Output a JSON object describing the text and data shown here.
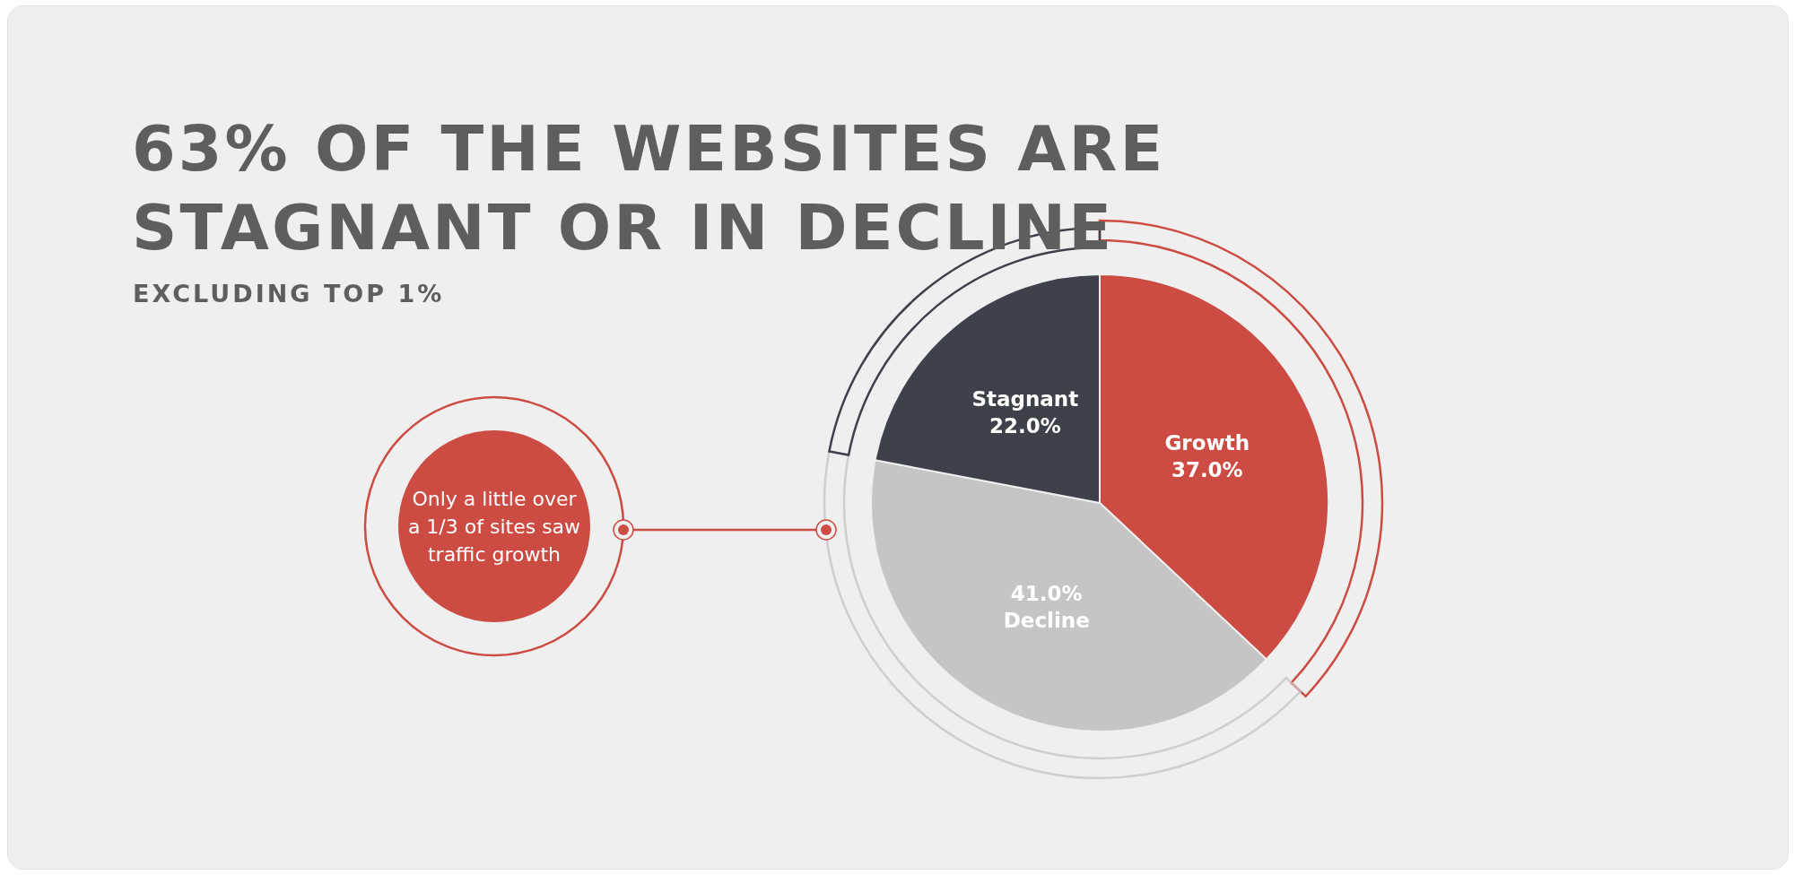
{
  "chart_data": {
    "type": "pie",
    "title": "63% OF THE WEBSITES ARE STAGNANT OR IN DECLINE",
    "subtitle": "EXCLUDING TOP 1%",
    "categories": [
      "Growth",
      "Decline",
      "Stagnant"
    ],
    "values": [
      37.0,
      41.0,
      22.0
    ],
    "value_labels": [
      "37.0%",
      "41.0%",
      "22.0%"
    ],
    "colors": [
      "#cc4b42",
      "#c5c5c5",
      "#3e404a"
    ],
    "annotations": [
      "Only a little over a 1/3 of sites saw traffic growth"
    ]
  }
}
